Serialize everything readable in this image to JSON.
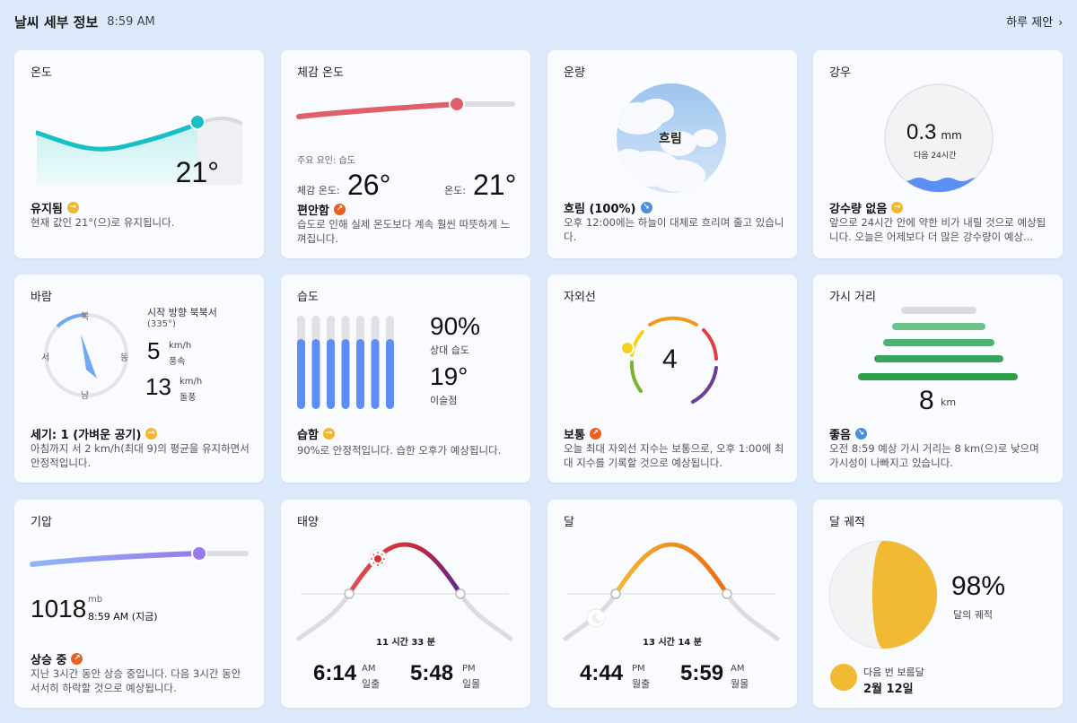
{
  "header": {
    "title": "날씨 세부 정보",
    "time": "8:59 AM",
    "suggest_label": "하루 제안",
    "chevron": "›"
  },
  "cards": {
    "temperature": {
      "title": "온도",
      "value": "21°",
      "status": "유지됨",
      "desc": "현재 값인 21°(으)로 유지됩니다.",
      "trend_icon": "→"
    },
    "feels_like": {
      "title": "체감 온도",
      "factor_label": "주요 요인: 습도",
      "feels_label": "체감 온도:",
      "feels_value": "26°",
      "temp_label": "온도:",
      "temp_value": "21°",
      "status": "편안함",
      "desc": "습도로 인해 실제 온도보다 계속 훨씬 따뜻하게 느껴집니다.",
      "trend_icon": "↗",
      "slider_level": 0.75
    },
    "cloud": {
      "title": "운량",
      "center_label": "흐림",
      "status": "흐림 (100%)",
      "desc": "오후 12:00에는 하늘이 대체로 흐리며 줄고 있습니다.",
      "trend_icon": "↘"
    },
    "rain": {
      "title": "강우",
      "value": "0.3",
      "unit": "mm",
      "sub": "다음 24시간",
      "status": "강수량 없음",
      "desc": "앞으로 24시간 안에 약한 비가 내릴 것으로 예상됩니다. 오늘은 어제보다 더 많은 강수량이 예상...",
      "trend_icon": "→"
    },
    "wind": {
      "title": "바람",
      "from_label": "시작 방향 북북서",
      "degree": "(335°)",
      "speed": "5",
      "speed_unit": "km/h",
      "speed_label": "풍속",
      "gust": "13",
      "gust_unit": "km/h",
      "gust_label": "돌풍",
      "n": "북",
      "s": "남",
      "e": "동",
      "w": "서",
      "status": "세기: 1 (가벼운 공기)",
      "desc": "아침까지 서 2 km/h(최대 9)의 평균을 유지하면서 안정적입니다.",
      "trend_icon": "→"
    },
    "humidity": {
      "title": "습도",
      "value": "90%",
      "value_label": "상대 습도",
      "dew": "19°",
      "dew_label": "이슬점",
      "status": "습함",
      "desc": "90%로 안정적입니다. 습한 오후가 예상됩니다.",
      "trend_icon": "→",
      "bar_levels": [
        0.75,
        0.75,
        0.75,
        0.75,
        0.75,
        0.75,
        0.75
      ]
    },
    "uv": {
      "title": "자외선",
      "value": "4",
      "status": "보통",
      "desc": "오늘 최대 자외선 지수는 보통으로, 오후 1:00에 최대 지수를 기록할 것으로 예상됩니다.",
      "trend_icon": "↗"
    },
    "visibility": {
      "title": "가시 거리",
      "value": "8",
      "unit": "km",
      "status": "좋음",
      "desc": "오전 8:59 예상 가시 거리는 8 km(으)로 낮으며 가시성이 나빠지고 있습니다.",
      "trend_icon": "↘"
    },
    "pressure": {
      "title": "기압",
      "value": "1018",
      "unit": "mb",
      "time": "8:59 AM (지금)",
      "status": "상승 중",
      "desc": "지난 3시간 동안 상승 중입니다. 다음 3시간 동안 서서히 하락할 것으로 예상됩니다.",
      "trend_icon": "↗"
    },
    "sun": {
      "title": "태양",
      "duration": "11 시간 33 분",
      "rise_time": "6:14",
      "rise_ampm": "AM",
      "rise_label": "일출",
      "set_time": "5:48",
      "set_ampm": "PM",
      "set_label": "일몰"
    },
    "moon": {
      "title": "달",
      "duration": "13 시간 14 분",
      "rise_time": "4:44",
      "rise_ampm": "PM",
      "rise_label": "월출",
      "set_time": "5:59",
      "set_ampm": "AM",
      "set_label": "월몰"
    },
    "moon_phase": {
      "title": "달 궤적",
      "value": "98%",
      "value_label": "달의 궤적",
      "next_label": "다음 번 보름달",
      "next_date": "2월 12일"
    }
  },
  "colors": {
    "accent_teal": "#19bfc6",
    "feels_red": "#e0606a",
    "pressure_purple": "#9a78ee",
    "humidity_blue": "#5b8ff6",
    "visibility_green": "#2f9e4b",
    "moon_yellow": "#f2b933"
  }
}
